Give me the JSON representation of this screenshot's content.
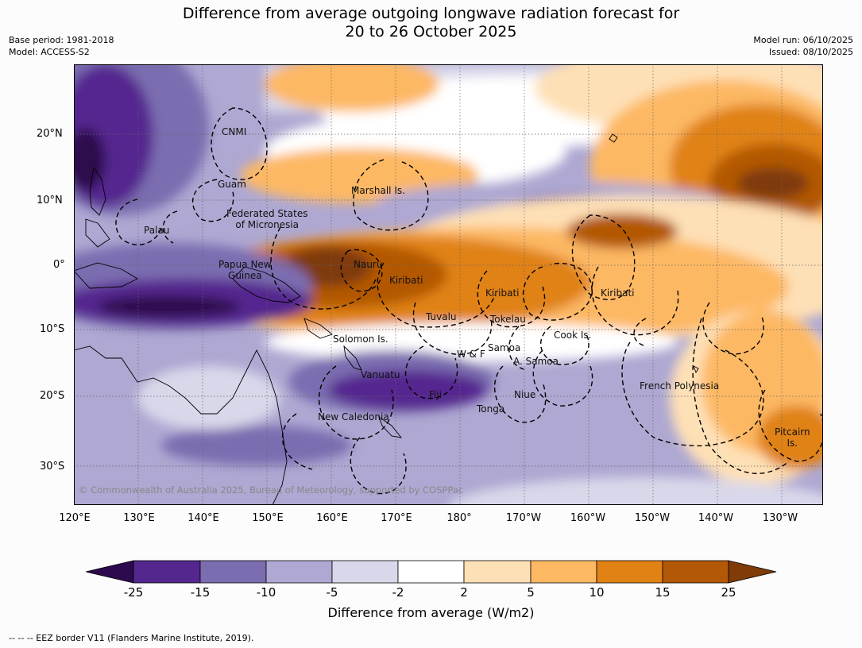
{
  "title": {
    "line1": "Difference from average outgoing longwave radiation forecast for",
    "line2": "20 to 26 October 2025"
  },
  "meta": {
    "base_period": "Base period: 1981-2018",
    "model": "Model: ACCESS-S2",
    "model_run": "Model run: 06/10/2025",
    "issued": "Issued: 08/10/2025"
  },
  "map": {
    "latitude_labels": [
      "20°N",
      "10°N",
      "0°",
      "10°S",
      "20°S",
      "30°S"
    ],
    "longitude_labels": [
      "120°E",
      "130°E",
      "140°E",
      "150°E",
      "160°E",
      "170°E",
      "180°",
      "170°W",
      "160°W",
      "150°W",
      "140°W",
      "130°W"
    ],
    "places": {
      "cnmi": "CNMI",
      "guam": "Guam",
      "marshall": "Marshall Is.",
      "fsm_1": "Federated States",
      "fsm_2": "of Micronesia",
      "palau": "Palau",
      "png_1": "Papua New",
      "png_2": "Guinea",
      "nauru": "Nauru",
      "kiribati_w": "Kiribati",
      "kiribati_c": "Kiribati",
      "kiribati_e": "Kiribati",
      "tuvalu": "Tuvalu",
      "tokelau": "Tokelau",
      "cook": "Cook Is.",
      "solomon": "Solomon Is.",
      "samoa": "Samoa",
      "wf": "W & F",
      "asamoa": "A. Samoa",
      "vanuatu": "Vanuatu",
      "fiji": "Fiji",
      "niue": "Niue",
      "tonga": "Tonga",
      "newcal": "New Caledonia",
      "frenchpoly": "French Polynesia",
      "pitcairn_1": "Pitcairn",
      "pitcairn_2": "Is."
    },
    "copyright": "© Commonwealth of Australia 2025, Bureau of Meteorology, supported by COSPPac"
  },
  "colorbar": {
    "title": "Difference from average (W/m2)",
    "ticks": [
      "-25",
      "-15",
      "-10",
      "-5",
      "-2",
      "2",
      "5",
      "10",
      "15",
      "25"
    ],
    "colors": [
      "#2d0a4e",
      "#54278f",
      "#7c6db0",
      "#aea8d2",
      "#d9d8ea",
      "#ffffff",
      "#fee0b6",
      "#fdb863",
      "#e08214",
      "#b35806",
      "#7f3b08"
    ]
  },
  "footnote": "-- -- -- EEZ border V11 (Flanders Marine Institute, 2019)."
}
